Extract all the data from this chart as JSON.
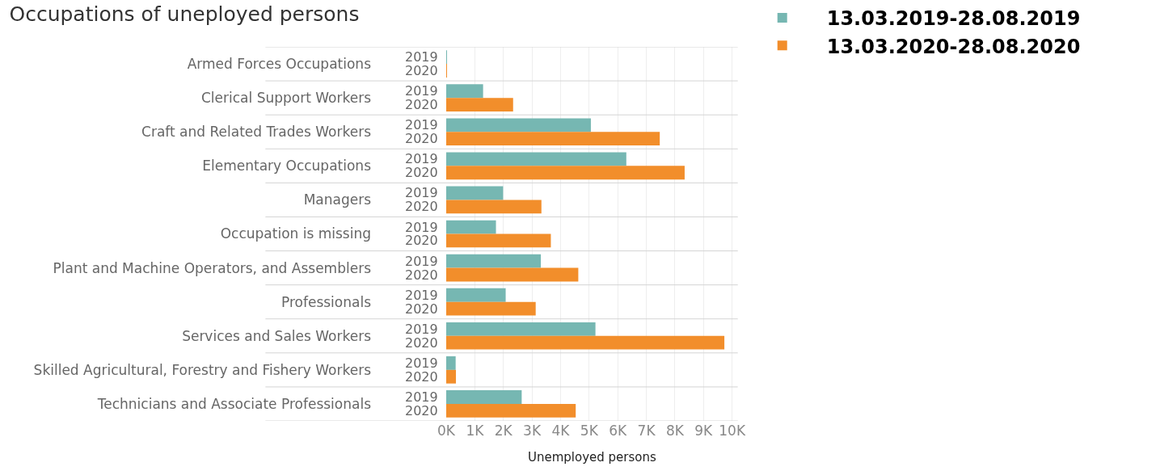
{
  "chart_data": {
    "type": "bar",
    "orientation": "horizontal",
    "title": "Occupations of uneployed persons",
    "xlabel": "Unemployed persons",
    "categories": [
      "Armed Forces Occupations",
      "Clerical Support Workers",
      "Craft and Related Trades Workers",
      "Elementary Occupations",
      "Managers",
      "Occupation is missing",
      "Plant and Machine Operators, and Assemblers",
      "Professionals",
      "Services and Sales Workers",
      "Skilled Agricultural, Forestry and Fishery Workers",
      "Technicians and Associate Professionals"
    ],
    "series": [
      {
        "name": "13.03.2019-28.08.2019",
        "color": "#76b7b2",
        "values": [
          10,
          1290,
          5060,
          6300,
          1990,
          1740,
          3310,
          2080,
          5220,
          330,
          2640
        ]
      },
      {
        "name": "13.03.2020-28.08.2020",
        "color": "#f28e2b",
        "values": [
          10,
          2340,
          7470,
          8340,
          3330,
          3660,
          4620,
          3130,
          9730,
          340,
          4530
        ]
      }
    ],
    "annotations": [
      "2019",
      "2020",
      "2019",
      "2020",
      "2019",
      "2020",
      "2019",
      "2020",
      "2019",
      "2020",
      "2019",
      "2020",
      "2019",
      "2020",
      "2019",
      "2020",
      "2019",
      "2020",
      "2019",
      "2020",
      "2019",
      "2020"
    ],
    "xlim": [
      0,
      10200
    ],
    "xticks": [
      {
        "value": 0,
        "label": "0K"
      },
      {
        "value": 1000,
        "label": "1K"
      },
      {
        "value": 2000,
        "label": "2K"
      },
      {
        "value": 3000,
        "label": "3K"
      },
      {
        "value": 4000,
        "label": "4K"
      },
      {
        "value": 5000,
        "label": "5K"
      },
      {
        "value": 6000,
        "label": "6K"
      },
      {
        "value": 7000,
        "label": "7K"
      },
      {
        "value": 8000,
        "label": "8K"
      },
      {
        "value": 9000,
        "label": "9K"
      },
      {
        "value": 10000,
        "label": "10K"
      }
    ],
    "grid": true,
    "legend": "top right"
  }
}
